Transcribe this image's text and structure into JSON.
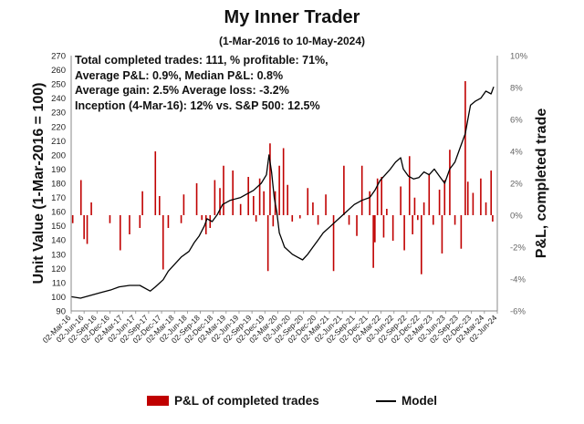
{
  "chart_data": {
    "type": "line+bar",
    "title": "My Inner Trader",
    "subtitle": "(1-Mar-2016 to 10-May-2024)",
    "stats_lines": [
      "Total completed trades: 111, % profitable: 71%,",
      "Average P&L: 0.9%, Median P&L: 0.8%",
      "Average gain: 2.5% Average loss: -3.2%",
      "Inception (4-Mar-16): 12% vs. S&P 500: 12.5%"
    ],
    "ylabel_left": "Unit Value (1-Mar-2016 = 100)",
    "ylabel_right": "P&L, completed trade",
    "ylim_left": [
      90,
      270
    ],
    "yticks_left": [
      "90",
      "100",
      "110",
      "120",
      "130",
      "140",
      "150",
      "160",
      "170",
      "180",
      "190",
      "200",
      "210",
      "220",
      "230",
      "240",
      "250",
      "260",
      "270"
    ],
    "ylim_right_pct": [
      -6,
      10
    ],
    "yticks_right": [
      "-6%",
      "-4%",
      "-2%",
      "0%",
      "2%",
      "4%",
      "6%",
      "8%",
      "10%"
    ],
    "xlim": [
      2016.17,
      2024.42
    ],
    "xticks": [
      "02-Mar-16",
      "02-Jun-16",
      "02-Sep-16",
      "02-Dec-16",
      "02-Mar-17",
      "02-Jun-17",
      "02-Sep-17",
      "02-Dec-17",
      "02-Mar-18",
      "02-Jun-18",
      "02-Sep-18",
      "02-Dec-18",
      "02-Mar-19",
      "02-Jun-19",
      "02-Sep-19",
      "02-Dec-19",
      "02-Mar-20",
      "02-Jun-20",
      "02-Sep-20",
      "02-Dec-20",
      "02-Mar-21",
      "02-Jun-21",
      "02-Sep-21",
      "02-Dec-21",
      "02-Mar-22",
      "02-Jun-22",
      "02-Sep-22",
      "02-Dec-22",
      "02-Mar-23",
      "02-Jun-23",
      "02-Sep-23",
      "02-Dec-23",
      "02-Mar-24",
      "02-Jun-24"
    ],
    "legend": [
      {
        "name": "P&L of completed trades",
        "kind": "bar",
        "color": "#c00000"
      },
      {
        "name": "Model",
        "kind": "line",
        "color": "#000000"
      }
    ],
    "model_series": {
      "name": "Model",
      "x": [
        2016.17,
        2016.35,
        2016.55,
        2016.75,
        2016.95,
        2017.1,
        2017.3,
        2017.5,
        2017.65,
        2017.7,
        2017.8,
        2017.95,
        2018.05,
        2018.15,
        2018.3,
        2018.45,
        2018.55,
        2018.65,
        2018.75,
        2018.8,
        2018.9,
        2019.0,
        2019.1,
        2019.25,
        2019.45,
        2019.55,
        2019.7,
        2019.85,
        2019.95,
        2020.0,
        2020.05,
        2020.1,
        2020.15,
        2020.2,
        2020.25,
        2020.3,
        2020.45,
        2020.55,
        2020.65,
        2020.75,
        2020.85,
        2020.95,
        2021.05,
        2021.2,
        2021.35,
        2021.5,
        2021.65,
        2021.8,
        2021.95,
        2022.05,
        2022.15,
        2022.25,
        2022.35,
        2022.45,
        2022.55,
        2022.6,
        2022.7,
        2022.8,
        2022.9,
        2023.0,
        2023.1,
        2023.2,
        2023.3,
        2023.4,
        2023.5,
        2023.6,
        2023.7,
        2023.8,
        2023.85,
        2023.9,
        2024.0,
        2024.1,
        2024.2,
        2024.3,
        2024.35
      ],
      "values": [
        100,
        99,
        101,
        103,
        105,
        107,
        108,
        108,
        105,
        104,
        107,
        112,
        118,
        122,
        128,
        132,
        138,
        143,
        150,
        155,
        153,
        158,
        165,
        168,
        170,
        172,
        175,
        180,
        186,
        200,
        188,
        170,
        160,
        145,
        140,
        135,
        130,
        128,
        126,
        130,
        135,
        140,
        145,
        150,
        155,
        160,
        165,
        168,
        170,
        175,
        182,
        186,
        190,
        195,
        198,
        190,
        185,
        183,
        184,
        188,
        186,
        190,
        185,
        180,
        190,
        195,
        205,
        215,
        225,
        235,
        238,
        240,
        245,
        243,
        248
      ]
    },
    "trades": {
      "name": "P&L of completed trades",
      "unit": "%",
      "x": [
        2016.2,
        2016.36,
        2016.42,
        2016.48,
        2016.56,
        2016.92,
        2017.12,
        2017.3,
        2017.5,
        2017.55,
        2017.8,
        2017.88,
        2017.95,
        2018.05,
        2018.3,
        2018.35,
        2018.6,
        2018.7,
        2018.78,
        2018.86,
        2018.95,
        2019.05,
        2019.12,
        2019.3,
        2019.45,
        2019.6,
        2019.7,
        2019.75,
        2019.82,
        2019.9,
        2019.98,
        2020.02,
        2020.08,
        2020.12,
        2020.2,
        2020.28,
        2020.36,
        2020.45,
        2020.6,
        2020.75,
        2020.85,
        2020.95,
        2021.1,
        2021.25,
        2021.45,
        2021.55,
        2021.7,
        2021.8,
        2021.95,
        2022.02,
        2022.05,
        2022.1,
        2022.18,
        2022.22,
        2022.28,
        2022.4,
        2022.55,
        2022.62,
        2022.72,
        2022.78,
        2022.82,
        2022.88,
        2022.95,
        2023.0,
        2023.1,
        2023.18,
        2023.3,
        2023.35,
        2023.4,
        2023.5,
        2023.6,
        2023.72,
        2023.8,
        2023.85,
        2023.95,
        2024.1,
        2024.2,
        2024.3,
        2024.33
      ],
      "values": [
        -0.5,
        2.2,
        -1.5,
        -1.8,
        0.8,
        -0.5,
        -2.2,
        -1.2,
        -0.8,
        1.5,
        4.0,
        1.2,
        -3.4,
        -0.8,
        -0.5,
        1.3,
        2.0,
        -0.3,
        -1.2,
        -0.8,
        2.2,
        1.7,
        3.1,
        2.8,
        0.7,
        2.4,
        1.2,
        -0.4,
        2.3,
        1.5,
        -3.5,
        4.5,
        -0.7,
        1.5,
        3.1,
        4.2,
        1.9,
        -0.4,
        -0.2,
        1.7,
        0.8,
        -0.6,
        1.3,
        -3.5,
        3.1,
        -0.6,
        -1.3,
        3.1,
        1.5,
        -3.3,
        -1.7,
        2.3,
        2.4,
        -1.4,
        0.4,
        -1.6,
        1.8,
        -2.2,
        3.7,
        -1.2,
        1.1,
        -0.3,
        -3.7,
        0.8,
        2.6,
        -0.6,
        1.6,
        -2.4,
        2.2,
        4.1,
        -0.6,
        -2.1,
        8.4,
        2.1,
        1.4,
        2.3,
        0.8,
        2.8,
        -0.4
      ]
    }
  }
}
